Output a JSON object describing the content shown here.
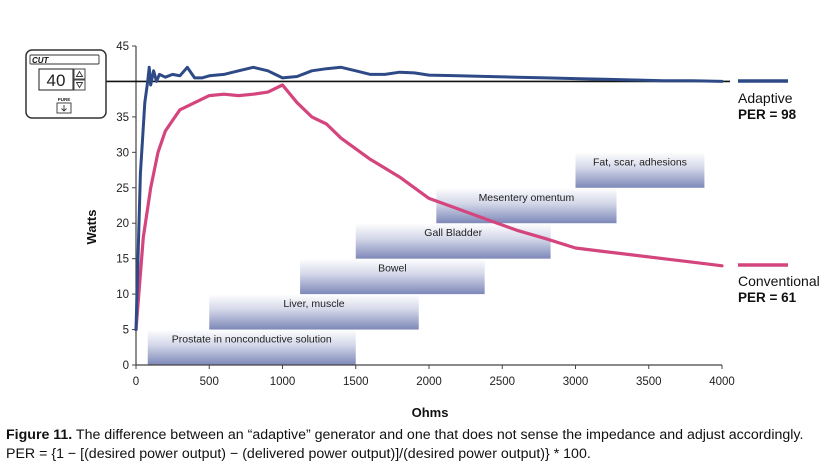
{
  "chart_data": {
    "type": "line",
    "xlabel": "Ohms",
    "ylabel": "Watts",
    "xlim": [
      0,
      4000
    ],
    "ylim": [
      0,
      45
    ],
    "x_ticks": [
      0,
      500,
      1000,
      1500,
      2000,
      2500,
      3000,
      3500,
      4000
    ],
    "y_ticks": [
      0,
      5,
      10,
      15,
      20,
      25,
      30,
      35,
      40,
      45
    ],
    "y_tick_labels": [
      "0",
      "5",
      "10",
      "15",
      "20",
      "25",
      "30",
      "35",
      "",
      "45"
    ],
    "grid": false,
    "reference_line_y": 40,
    "series": [
      {
        "name": "Adaptive",
        "per_label": "PER = 98",
        "color": "#2e4a86",
        "x": [
          0,
          30,
          60,
          80,
          90,
          100,
          110,
          120,
          140,
          160,
          200,
          250,
          300,
          350,
          400,
          450,
          500,
          600,
          700,
          800,
          900,
          1000,
          1100,
          1200,
          1300,
          1400,
          1500,
          1600,
          1700,
          1800,
          1900,
          2000,
          2200,
          2400,
          2600,
          2800,
          3000,
          3200,
          3400,
          3600,
          3800,
          4000
        ],
        "y": [
          5,
          27,
          37,
          40,
          42,
          39.5,
          40.5,
          41.5,
          40,
          41,
          40.6,
          41,
          40.8,
          42,
          40.5,
          40.5,
          40.8,
          41,
          41.5,
          42,
          41.5,
          40.5,
          40.7,
          41.5,
          41.8,
          42,
          41.5,
          41,
          41,
          41.3,
          41.2,
          40.9,
          40.8,
          40.7,
          40.6,
          40.5,
          40.4,
          40.3,
          40.2,
          40.1,
          40.1,
          40
        ]
      },
      {
        "name": "Conventional",
        "per_label": "PER = 61",
        "color": "#d4457e",
        "x": [
          0,
          50,
          100,
          150,
          200,
          250,
          300,
          400,
          500,
          600,
          700,
          800,
          900,
          1000,
          1100,
          1200,
          1300,
          1400,
          1600,
          1800,
          2000,
          2200,
          2400,
          2600,
          2800,
          3000,
          3200,
          3400,
          3600,
          3800,
          4000
        ],
        "y": [
          5,
          18,
          25,
          30,
          33,
          34.5,
          36,
          37,
          38,
          38.2,
          38,
          38.2,
          38.5,
          39.5,
          37,
          35,
          34,
          32,
          29,
          26.5,
          23.5,
          22,
          20.5,
          19,
          17.8,
          16.5,
          16,
          15.5,
          15,
          14.5,
          14
        ]
      }
    ],
    "tissue_bands": [
      {
        "label": "Prostate in nonconductive solution",
        "x_start": 80,
        "x_end": 1500,
        "y_low": 0,
        "y_high": 5
      },
      {
        "label": "Liver, muscle",
        "x_start": 500,
        "x_end": 1930,
        "y_low": 5,
        "y_high": 10
      },
      {
        "label": "Bowel",
        "x_start": 1120,
        "x_end": 2380,
        "y_low": 10,
        "y_high": 15
      },
      {
        "label": "Gall Bladder",
        "x_start": 1500,
        "x_end": 2830,
        "y_low": 15,
        "y_high": 20
      },
      {
        "label": "Mesentery omentum",
        "x_start": 2050,
        "x_end": 3280,
        "y_low": 20,
        "y_high": 25
      },
      {
        "label": "Fat, scar, adhesions",
        "x_start": 3000,
        "x_end": 3880,
        "y_low": 25,
        "y_high": 30
      }
    ]
  },
  "device_panel": {
    "mode_label": "CUT",
    "display_value": "40",
    "pure_label": "PURE"
  },
  "caption": {
    "label": "Figure 11.",
    "text": "The difference between an “adaptive” generator and one that does not sense the impedance and adjust accordingly. PER = {1 − [(desired power output) − (delivered power output)]/(desired power output)} * 100."
  },
  "colors": {
    "axis": "#444444",
    "band_top": "#ffffff",
    "band_bottom": "#7d88b8"
  }
}
